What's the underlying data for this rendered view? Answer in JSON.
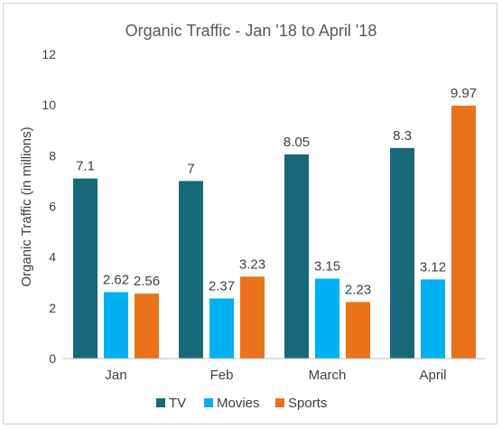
{
  "chart_data": {
    "type": "bar",
    "title": "Organic Traffic - Jan '18 to April '18",
    "xlabel": "",
    "ylabel": "Organic Traffic (in millions)",
    "categories": [
      "Jan",
      "Feb",
      "March",
      "April"
    ],
    "series": [
      {
        "name": "TV",
        "color": "#17697A",
        "values": [
          7.1,
          7,
          8.05,
          8.3
        ],
        "labels": [
          "7.1",
          "7",
          "8.05",
          "8.3"
        ]
      },
      {
        "name": "Movies",
        "color": "#00B0F0",
        "values": [
          2.62,
          2.37,
          3.15,
          3.12
        ],
        "labels": [
          "2.62",
          "2.37",
          "3.15",
          "3.12"
        ]
      },
      {
        "name": "Sports",
        "color": "#E9721A",
        "values": [
          2.56,
          3.23,
          2.23,
          9.97
        ],
        "labels": [
          "2.56",
          "3.23",
          "2.23",
          "9.97"
        ]
      }
    ],
    "ylim": [
      0,
      12
    ],
    "yticks": [
      "0",
      "2",
      "4",
      "6",
      "8",
      "10",
      "12"
    ],
    "grid": false,
    "legend_position": "bottom"
  }
}
